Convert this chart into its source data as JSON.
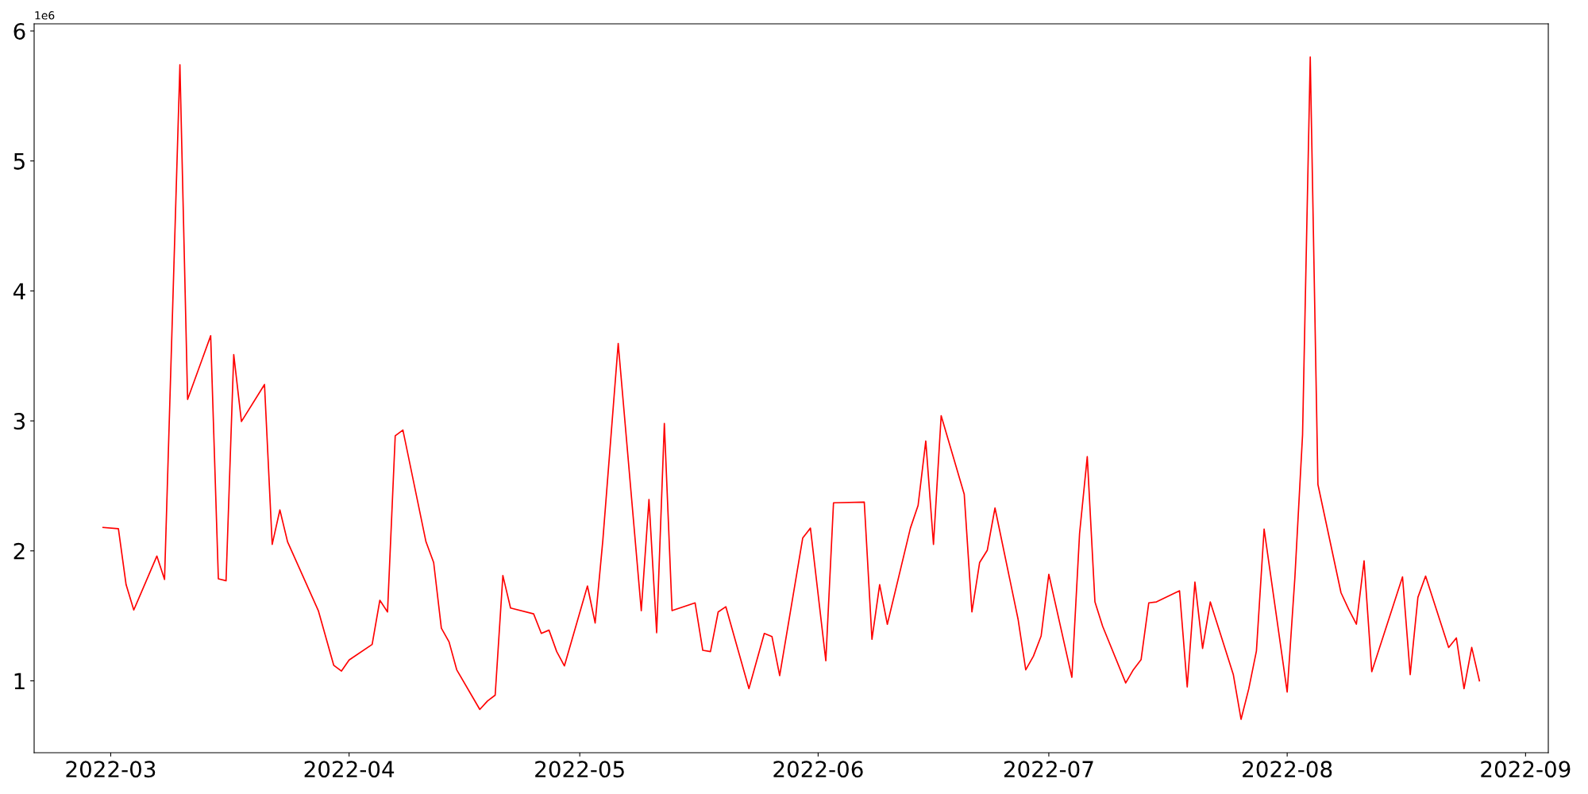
{
  "chart_data": {
    "type": "line",
    "x": [
      "2022-02-28",
      "2022-03-02",
      "2022-03-03",
      "2022-03-04",
      "2022-03-07",
      "2022-03-08",
      "2022-03-10",
      "2022-03-11",
      "2022-03-14",
      "2022-03-15",
      "2022-03-16",
      "2022-03-17",
      "2022-03-18",
      "2022-03-21",
      "2022-03-22",
      "2022-03-23",
      "2022-03-24",
      "2022-03-28",
      "2022-03-30",
      "2022-03-31",
      "2022-04-01",
      "2022-04-04",
      "2022-04-05",
      "2022-04-06",
      "2022-04-07",
      "2022-04-08",
      "2022-04-11",
      "2022-04-12",
      "2022-04-13",
      "2022-04-14",
      "2022-04-15",
      "2022-04-18",
      "2022-04-19",
      "2022-04-20",
      "2022-04-21",
      "2022-04-22",
      "2022-04-25",
      "2022-04-26",
      "2022-04-27",
      "2022-04-28",
      "2022-04-29",
      "2022-05-02",
      "2022-05-03",
      "2022-05-04",
      "2022-05-06",
      "2022-05-09",
      "2022-05-10",
      "2022-05-11",
      "2022-05-12",
      "2022-05-13",
      "2022-05-16",
      "2022-05-17",
      "2022-05-18",
      "2022-05-19",
      "2022-05-20",
      "2022-05-23",
      "2022-05-25",
      "2022-05-26",
      "2022-05-27",
      "2022-05-30",
      "2022-05-31",
      "2022-06-02",
      "2022-06-03",
      "2022-06-07",
      "2022-06-08",
      "2022-06-09",
      "2022-06-10",
      "2022-06-13",
      "2022-06-14",
      "2022-06-15",
      "2022-06-16",
      "2022-06-17",
      "2022-06-20",
      "2022-06-21",
      "2022-06-22",
      "2022-06-23",
      "2022-06-24",
      "2022-06-27",
      "2022-06-28",
      "2022-06-29",
      "2022-06-30",
      "2022-07-01",
      "2022-07-04",
      "2022-07-05",
      "2022-07-06",
      "2022-07-07",
      "2022-07-08",
      "2022-07-11",
      "2022-07-12",
      "2022-07-13",
      "2022-07-14",
      "2022-07-15",
      "2022-07-18",
      "2022-07-19",
      "2022-07-20",
      "2022-07-21",
      "2022-07-22",
      "2022-07-25",
      "2022-07-26",
      "2022-07-27",
      "2022-07-28",
      "2022-07-29",
      "2022-08-01",
      "2022-08-02",
      "2022-08-03",
      "2022-08-04",
      "2022-08-05",
      "2022-08-08",
      "2022-08-09",
      "2022-08-10",
      "2022-08-11",
      "2022-08-12",
      "2022-08-16",
      "2022-08-17",
      "2022-08-18",
      "2022-08-19",
      "2022-08-22",
      "2022-08-23",
      "2022-08-24",
      "2022-08-25",
      "2022-08-26"
    ],
    "series": [
      {
        "color": "#ff0000",
        "values": [
          2.18,
          2.17,
          1.74,
          1.545,
          1.96,
          1.78,
          5.74,
          3.165,
          3.655,
          1.785,
          1.77,
          3.51,
          2.995,
          3.28,
          2.05,
          2.315,
          2.07,
          1.54,
          1.12,
          1.075,
          1.16,
          1.28,
          1.62,
          1.53,
          2.885,
          2.93,
          2.07,
          1.91,
          1.405,
          1.3,
          1.085,
          0.78,
          0.845,
          0.89,
          1.81,
          1.56,
          1.515,
          1.365,
          1.39,
          1.225,
          1.115,
          1.73,
          1.445,
          2.08,
          3.595,
          1.54,
          2.395,
          1.37,
          2.98,
          1.54,
          1.6,
          1.235,
          1.225,
          1.53,
          1.57,
          0.94,
          1.365,
          1.34,
          1.04,
          2.1,
          2.175,
          1.155,
          2.37,
          2.375,
          1.32,
          1.74,
          1.435,
          2.175,
          2.35,
          2.845,
          2.05,
          3.04,
          2.435,
          1.53,
          1.91,
          2.005,
          2.33,
          1.475,
          1.085,
          1.19,
          1.345,
          1.82,
          1.027,
          2.133,
          2.725,
          1.607,
          1.42,
          0.984,
          1.086,
          1.164,
          1.6,
          1.607,
          1.693,
          0.953,
          1.76,
          1.25,
          1.607,
          1.047,
          0.704,
          0.938,
          1.23,
          2.168,
          0.914,
          1.794,
          2.893,
          5.8,
          2.51,
          1.678,
          1.55,
          1.436,
          1.923,
          1.07,
          1.8,
          1.047,
          1.642,
          1.806,
          1.257,
          1.33,
          0.94,
          1.257,
          1.0
        ]
      }
    ],
    "xlim": [
      "2022-02-19T01:00",
      "2022-09-03T23:00"
    ],
    "xticks": [
      {
        "value": "2022-03-01",
        "label": "2022-03"
      },
      {
        "value": "2022-04-01",
        "label": "2022-04"
      },
      {
        "value": "2022-05-01",
        "label": "2022-05"
      },
      {
        "value": "2022-06-01",
        "label": "2022-06"
      },
      {
        "value": "2022-07-01",
        "label": "2022-07"
      },
      {
        "value": "2022-08-01",
        "label": "2022-08"
      },
      {
        "value": "2022-09-01",
        "label": "2022-09"
      }
    ],
    "ylim": [
      0.447,
      6.055
    ],
    "yticks": [
      1,
      2,
      3,
      4,
      5,
      6
    ],
    "annotations": [
      "1e6"
    ],
    "grid": false,
    "marker": "none",
    "line_style": "solid"
  }
}
